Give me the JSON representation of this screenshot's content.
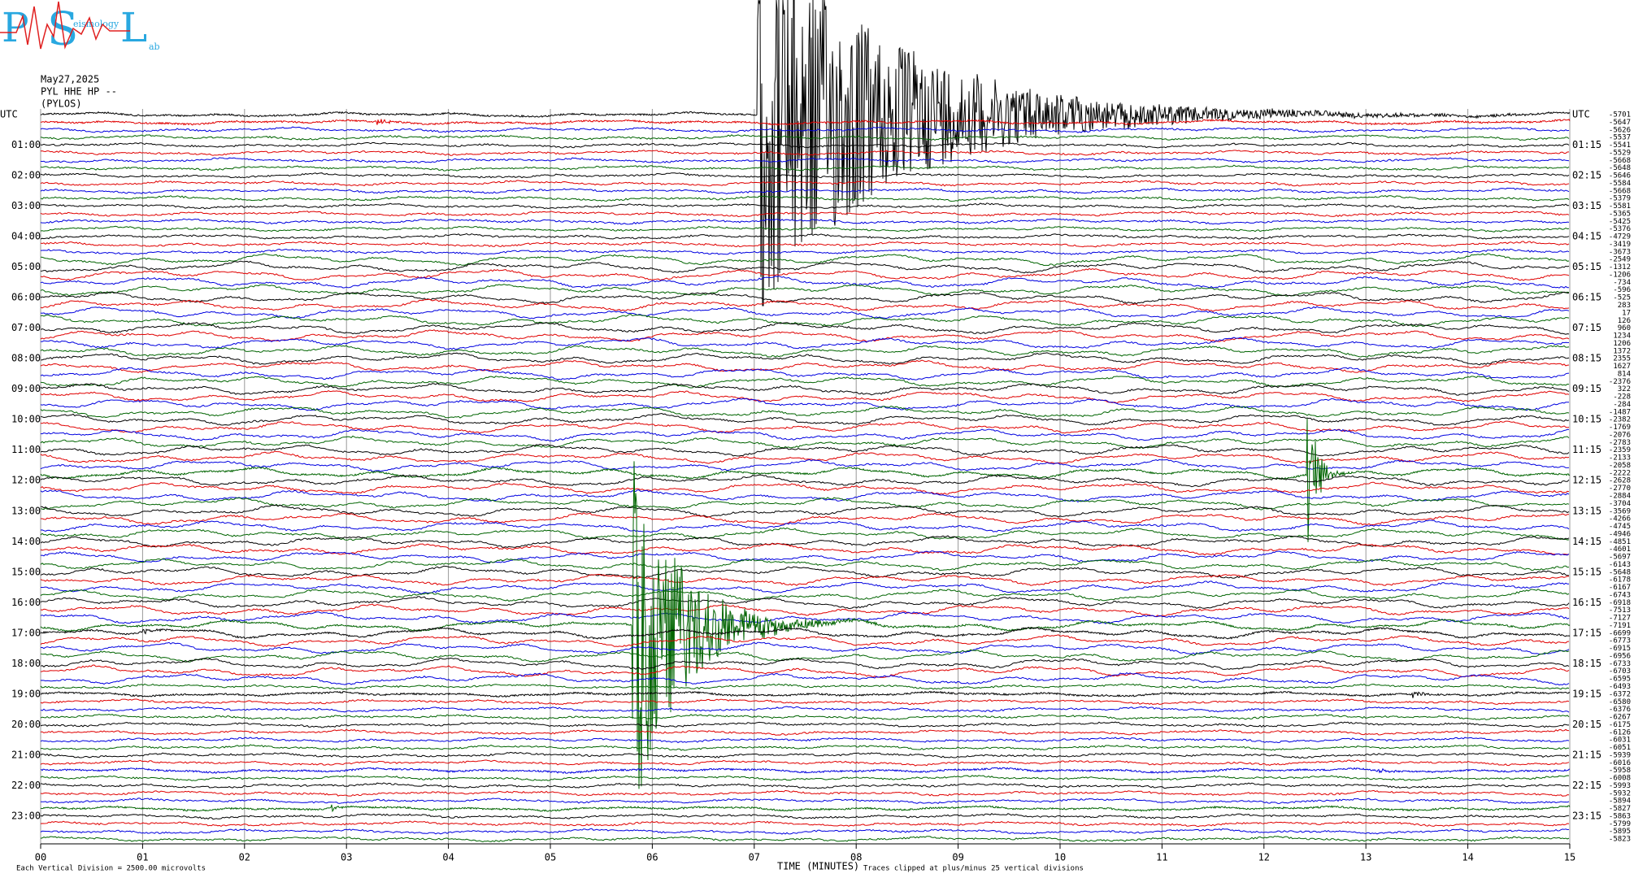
{
  "chart_data": {
    "type": "helicorder",
    "logo": {
      "letters": [
        "P",
        "S",
        "L"
      ],
      "words": [
        "eismology",
        "ab"
      ]
    },
    "header": [
      "May27,2025",
      "PYL HHE HP --",
      "(PYLOS)"
    ],
    "xlabel": "TIME (MINUTES)",
    "scale_note": "Each Vertical Division = 2500.00 microvolts",
    "clip_note": "Traces clipped at plus/minus 25 vertical divisions",
    "xlim": [
      0,
      15
    ],
    "xticks": [
      {
        "value": 0,
        "label": "00"
      },
      {
        "value": 1,
        "label": "01"
      },
      {
        "value": 2,
        "label": "02"
      },
      {
        "value": 3,
        "label": "03"
      },
      {
        "value": 4,
        "label": "04"
      },
      {
        "value": 5,
        "label": "05"
      },
      {
        "value": 6,
        "label": "06"
      },
      {
        "value": 7,
        "label": "07"
      },
      {
        "value": 8,
        "label": "08"
      },
      {
        "value": 9,
        "label": "09"
      },
      10,
      11,
      12,
      13,
      14,
      15
    ],
    "trace_colors": [
      "#000000",
      "#e00000",
      "#0000e0",
      "#006400"
    ],
    "hours_left": [
      "UTC",
      "01:00",
      "02:00",
      "03:00",
      "04:00",
      "05:00",
      "06:00",
      "07:00",
      "08:00",
      "09:00",
      "10:00",
      "11:00",
      "12:00",
      "13:00",
      "14:00",
      "15:00",
      "16:00",
      "17:00",
      "18:00",
      "19:00",
      "20:00",
      "21:00",
      "22:00",
      "23:00"
    ],
    "hours_right": [
      "UTC",
      "01:15",
      "02:15",
      "03:15",
      "04:15",
      "05:15",
      "06:15",
      "07:15",
      "08:15",
      "09:15",
      "10:15",
      "11:15",
      "12:15",
      "13:15",
      "14:15",
      "15:15",
      "16:15",
      "17:15",
      "18:15",
      "19:15",
      "20:15",
      "21:15",
      "22:15",
      "23:15"
    ],
    "trace_offsets": [
      -5701,
      -5647,
      -5626,
      -5537,
      -5541,
      -5529,
      -5668,
      -5648,
      -5646,
      -5584,
      -5668,
      -5379,
      -5581,
      -5365,
      -5425,
      -5376,
      -4729,
      -3419,
      -3673,
      -2549,
      -1312,
      -1206,
      -734,
      -596,
      -525,
      283,
      17,
      126,
      960,
      1234,
      1206,
      1372,
      2355,
      1627,
      814,
      -2376,
      322,
      -228,
      -284,
      -1487,
      -2382,
      -1769,
      -2076,
      -2783,
      -2359,
      -2133,
      -2058,
      -2222,
      -2628,
      -2770,
      -2884,
      -3704,
      -3569,
      -4266,
      -4745,
      -4946,
      -4851,
      -4601,
      -5697,
      -6143,
      -5648,
      -6178,
      -6167,
      -6743,
      -6918,
      -7513,
      -7127,
      -7191,
      -6699,
      -6773,
      -6915,
      -6956,
      -6733,
      -6703,
      -6595,
      -6493,
      -6372,
      -6580,
      -6376,
      -6267,
      -6175,
      -6126,
      -6031,
      -6051,
      -5939,
      -6016,
      -5958,
      -6008,
      -5993,
      -5932,
      -5894,
      -5827,
      -5863,
      -5799,
      -5895,
      -5823
    ]
  }
}
